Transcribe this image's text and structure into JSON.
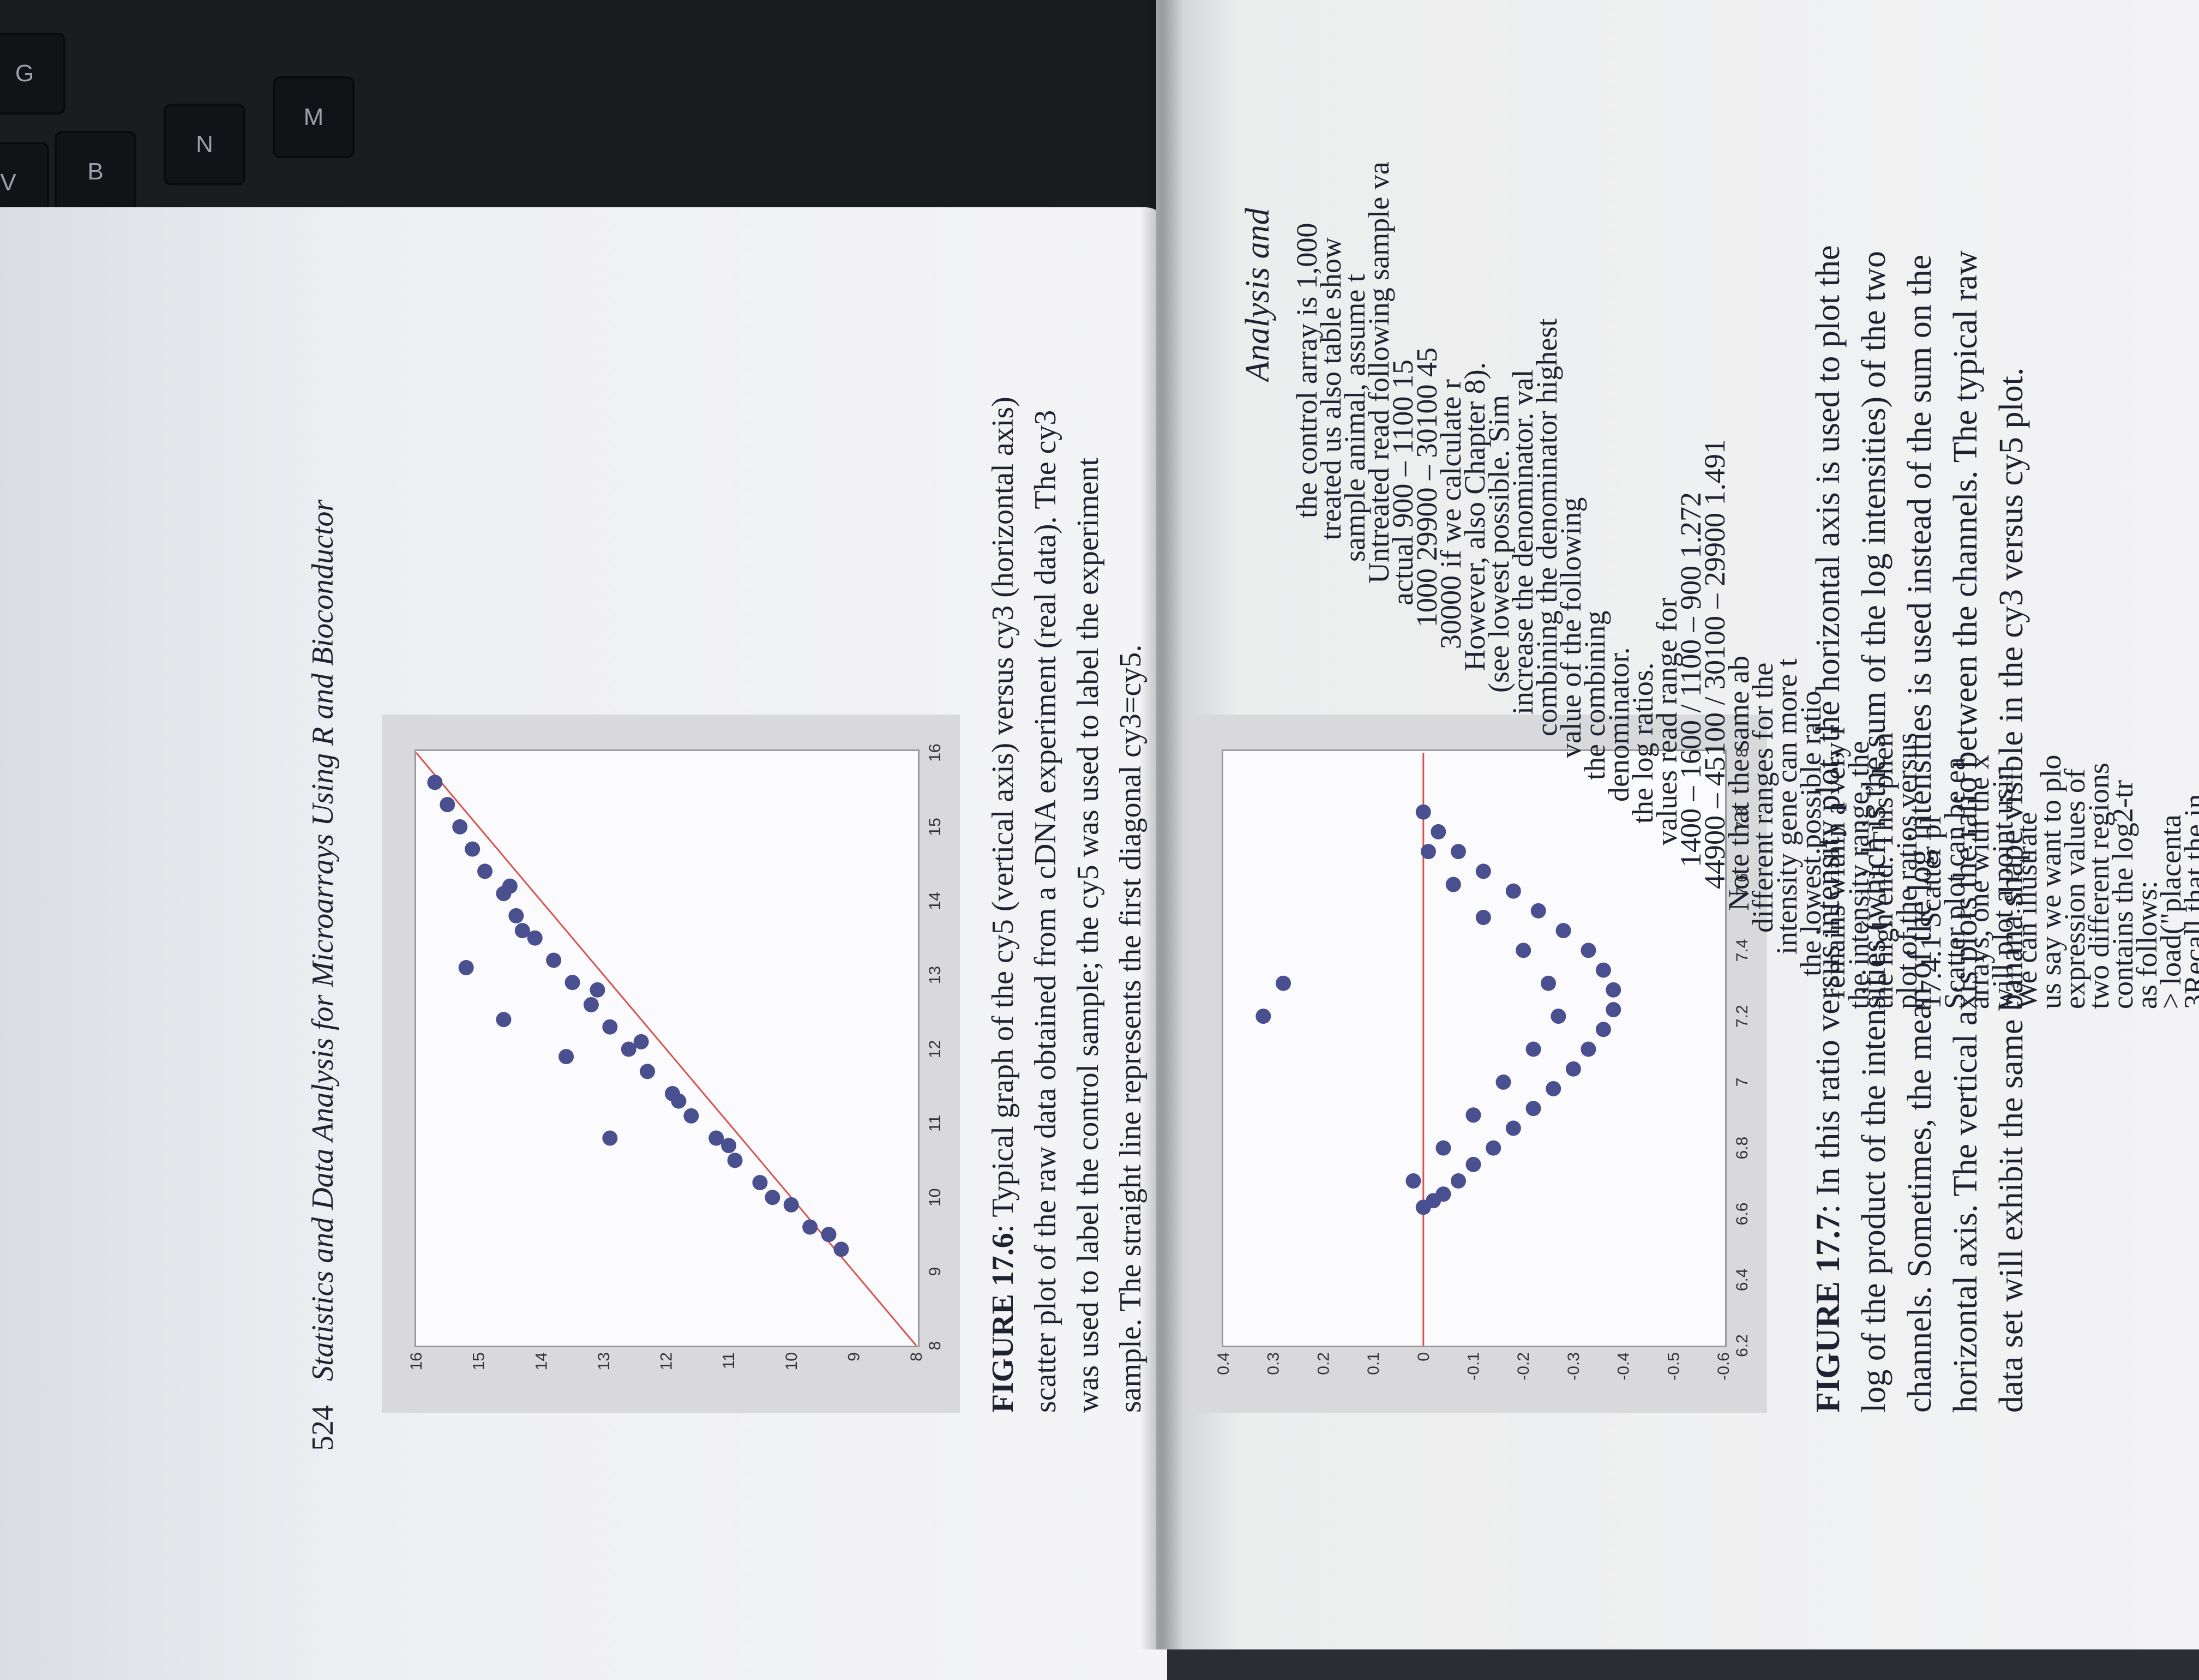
{
  "keyboard": {
    "keys": [
      "G",
      "B",
      "N",
      "M",
      "V"
    ]
  },
  "running_head": {
    "page_number": "524",
    "title": "Statistics and Data Analysis for Microarrays Using R and Bioconductor"
  },
  "figure_17_6": {
    "caption_label": "FIGURE 17.6",
    "caption_text": ": Typical graph of the cy5 (vertical axis) versus cy3 (horizontal axis) scatter plot of the raw data obtained from a cDNA experiment (real data). The cy3 was used to label the control sample; the cy5 was used to label the experiment sample. The straight line represents the first diagonal cy3=cy5."
  },
  "figure_17_7": {
    "caption_label": "FIGURE 17.7",
    "caption_text": ": In this ratio versus intensity plot, the horizontal axis is used to plot the log of the product of the intensities (which is the sum of the log intensities) of the two channels. Sometimes, the mean of the log intensities is used instead of the sum on the horizontal axis. The vertical axis plots the ratio between the channels. The typical raw data set will exhibit the same banana shape visible in the cy3 versus cy5 plot."
  },
  "chart_data": [
    {
      "type": "scatter",
      "xlim": [
        8,
        16
      ],
      "ylim": [
        8,
        16
      ],
      "x_ticks": [
        "8",
        "9",
        "10",
        "11",
        "12",
        "13",
        "14",
        "15",
        "16"
      ],
      "y_ticks": [
        "8",
        "9",
        "10",
        "11",
        "12",
        "13",
        "14",
        "15",
        "16"
      ],
      "reference_line": {
        "from": [
          8,
          8
        ],
        "to": [
          16,
          16
        ]
      },
      "point_color": "#4a4f8f",
      "line_color": "#d9534f",
      "points": [
        [
          9.3,
          9.2
        ],
        [
          9.6,
          9.7
        ],
        [
          9.9,
          10.0
        ],
        [
          10.2,
          10.5
        ],
        [
          10.5,
          10.9
        ],
        [
          10.8,
          11.2
        ],
        [
          11.1,
          11.6
        ],
        [
          11.4,
          11.9
        ],
        [
          11.7,
          12.3
        ],
        [
          12.0,
          12.6
        ],
        [
          12.3,
          12.9
        ],
        [
          12.6,
          13.2
        ],
        [
          12.9,
          13.5
        ],
        [
          13.2,
          13.8
        ],
        [
          13.5,
          14.1
        ],
        [
          13.8,
          14.4
        ],
        [
          14.1,
          14.6
        ],
        [
          14.4,
          14.9
        ],
        [
          14.7,
          15.1
        ],
        [
          15.0,
          15.3
        ],
        [
          15.3,
          15.5
        ],
        [
          15.6,
          15.7
        ],
        [
          9.5,
          9.4
        ],
        [
          10.0,
          10.3
        ],
        [
          10.7,
          11.0
        ],
        [
          11.3,
          11.8
        ],
        [
          12.1,
          12.4
        ],
        [
          12.8,
          13.1
        ],
        [
          13.6,
          14.3
        ],
        [
          14.2,
          14.5
        ],
        [
          11.9,
          13.6
        ],
        [
          10.8,
          12.9
        ],
        [
          12.4,
          14.6
        ],
        [
          13.1,
          15.2
        ]
      ]
    },
    {
      "type": "scatter",
      "xlim": [
        6.2,
        8
      ],
      "ylim": [
        -0.6,
        0.4
      ],
      "x_ticks": [
        "6.2",
        "6.4",
        "6.6",
        "6.8",
        "7",
        "7.2",
        "7.4",
        "7.6",
        "7.8",
        "8"
      ],
      "y_ticks": [
        "-0.6",
        "-0.5",
        "-0.4",
        "-0.3",
        "-0.2",
        "-0.1",
        "0",
        "0.1",
        "0.2",
        "0.3",
        "0.4"
      ],
      "reference_line": {
        "y": 0
      },
      "point_color": "#4a4f8f",
      "line_color": "#d9534f",
      "points": [
        [
          6.62,
          0.0
        ],
        [
          6.64,
          -0.02
        ],
        [
          6.66,
          -0.04
        ],
        [
          6.7,
          -0.07
        ],
        [
          6.75,
          -0.1
        ],
        [
          6.8,
          -0.14
        ],
        [
          6.86,
          -0.18
        ],
        [
          6.92,
          -0.22
        ],
        [
          6.98,
          -0.26
        ],
        [
          7.04,
          -0.3
        ],
        [
          7.1,
          -0.33
        ],
        [
          7.16,
          -0.36
        ],
        [
          7.22,
          -0.38
        ],
        [
          7.28,
          -0.38
        ],
        [
          7.34,
          -0.36
        ],
        [
          7.4,
          -0.33
        ],
        [
          7.46,
          -0.28
        ],
        [
          7.52,
          -0.23
        ],
        [
          7.58,
          -0.18
        ],
        [
          7.64,
          -0.12
        ],
        [
          7.7,
          -0.07
        ],
        [
          7.76,
          -0.03
        ],
        [
          7.82,
          0.0
        ],
        [
          6.7,
          0.02
        ],
        [
          6.8,
          -0.04
        ],
        [
          6.9,
          -0.1
        ],
        [
          7.0,
          -0.16
        ],
        [
          7.1,
          -0.22
        ],
        [
          7.2,
          -0.27
        ],
        [
          7.3,
          -0.25
        ],
        [
          7.4,
          -0.2
        ],
        [
          7.5,
          -0.12
        ],
        [
          7.6,
          -0.06
        ],
        [
          7.7,
          -0.01
        ],
        [
          7.3,
          0.28
        ],
        [
          7.2,
          0.32
        ]
      ]
    }
  ],
  "right_page": {
    "heading": "Analysis and",
    "lines": [
      "the control array is 1,000",
      "treated us also table show",
      "sample animal, assume t",
      "Untreated read   following sample   va",
      "actual  900 – 1100   15",
      "1000    29900 – 30100   45",
      "30000   if we calculate r",
      "However, also Chapter 8).",
      "(see lowest possible. Sim",
      "increase the denominator. val",
      "combining the denominator highest",
      "value of the following",
      "the combining",
      "denominator.",
      "the log ratios.",
      "values read   range for",
      "1400 – 1600  /  1100 – 900   1.272",
      "44900 – 45100  /  30100 – 29900   1.491",
      "Note that the same ab",
      "different ranges for the",
      "intensity gene can more t",
      "the lowest possible ratio",
      "remains within a very r",
      "the intensity range, the",
      "the high end. This phen",
      "plot of the ratios versus",
      "17.4.1   Scatter pl",
      "Scatter plot can be ea",
      "arrays, one with the x",
      "will plot a point usin",
      "We can illustrate",
      "us say we want to plo",
      "expression values of",
      "two different regions",
      "contains the log2-tr",
      "as follows:",
      "> load(\"placenta",
      "3Recall that the in"
    ]
  }
}
